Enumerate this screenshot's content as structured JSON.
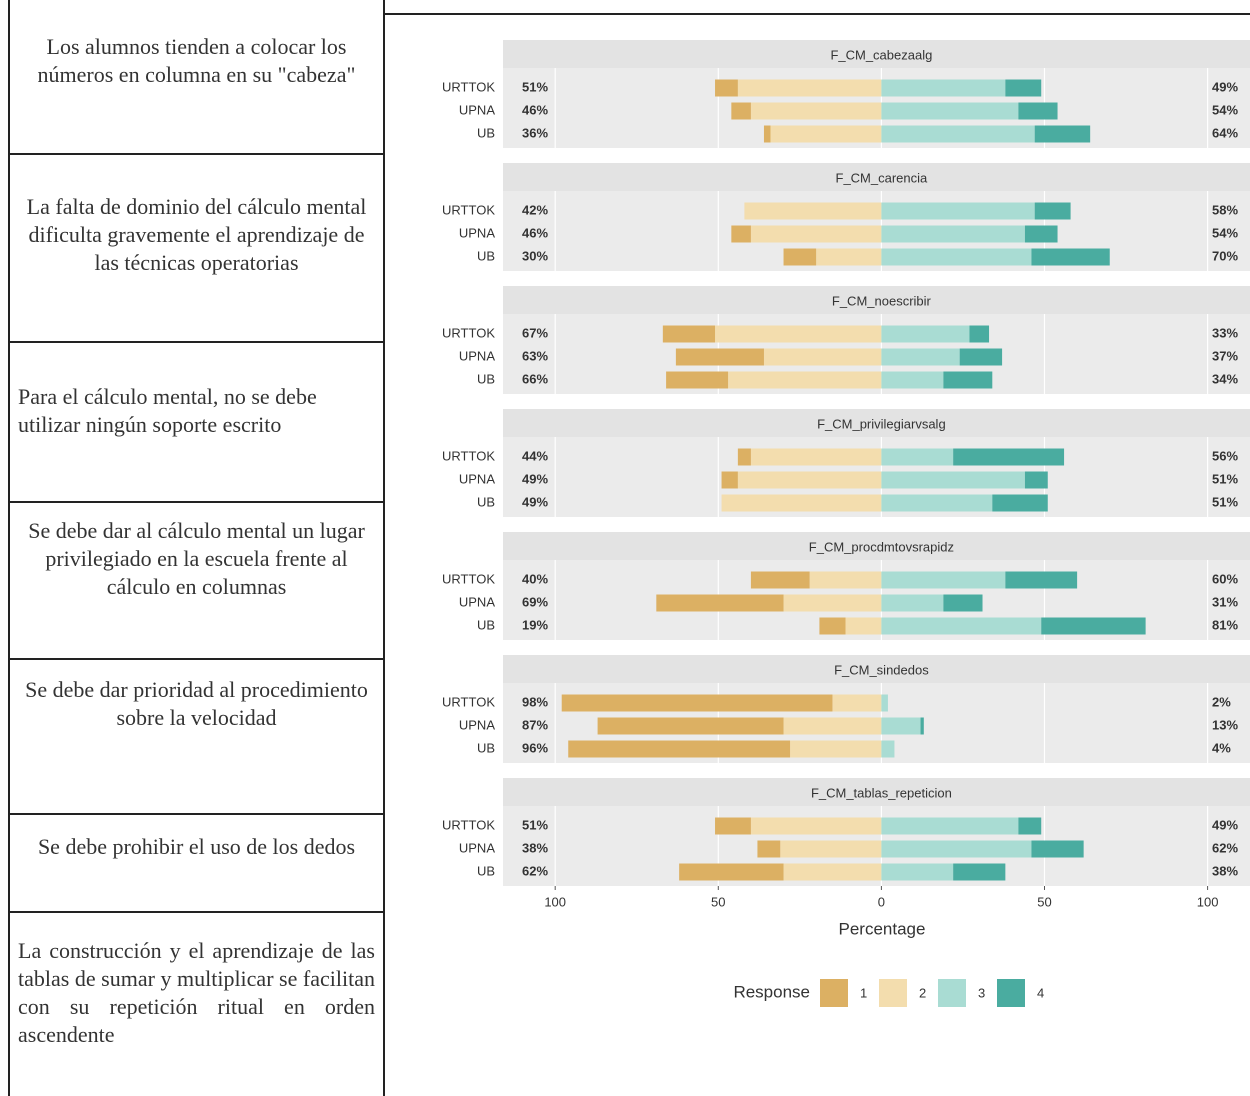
{
  "table": {
    "rows": [
      "Los alumnos tienden a colocar los números en columna  en su \"cabeza\"",
      "La falta de dominio del cálculo mental dificulta gravemente el aprendizaje de las técnicas operatorias",
      "Para el cálculo mental, no se debe utilizar ningún soporte escrito",
      "Se debe dar al cálculo mental un lugar privilegiado en la escuela frente al cálculo en columnas",
      "Se debe dar prioridad al procedimiento sobre la velocidad",
      "Se debe prohibir el uso de los dedos",
      "La construcción y el aprendizaje de las tablas de sumar y multiplicar se facilitan con su repetición ritual en orden ascendente"
    ]
  },
  "chart_data": {
    "type": "diverging_bar",
    "xlabel": "Percentage",
    "legend_title": "Response",
    "categories": [
      "URTTOK",
      "UPNA",
      "UB"
    ],
    "series": [
      {
        "name": "1",
        "color": "#dcb063"
      },
      {
        "name": "2",
        "color": "#f3ddae"
      },
      {
        "name": "3",
        "color": "#a9dcd3"
      },
      {
        "name": "4",
        "color": "#4aaca0"
      }
    ],
    "xlim": [
      -116,
      113
    ],
    "xticks": [
      {
        "value": -100,
        "label": "100"
      },
      {
        "value": -50,
        "label": "50"
      },
      0,
      50,
      100
    ],
    "grid": true,
    "panels": [
      {
        "title": "F_CM_cabezaalg",
        "values": [
          [
            7,
            44,
            38,
            11
          ],
          [
            6,
            40,
            42,
            12
          ],
          [
            2,
            34,
            47,
            17
          ]
        ],
        "left_labels": [
          "51%",
          "46%",
          "36%"
        ],
        "right_labels": [
          "49%",
          "54%",
          "64%"
        ]
      },
      {
        "title": "F_CM_carencia",
        "values": [
          [
            0,
            42,
            47,
            11
          ],
          [
            6,
            40,
            44,
            10
          ],
          [
            10,
            20,
            46,
            24
          ]
        ],
        "left_labels": [
          "42%",
          "46%",
          "30%"
        ],
        "right_labels": [
          "58%",
          "54%",
          "70%"
        ]
      },
      {
        "title": "F_CM_noescribir",
        "values": [
          [
            16,
            51,
            27,
            6
          ],
          [
            27,
            36,
            24,
            13
          ],
          [
            19,
            47,
            19,
            15
          ]
        ],
        "left_labels": [
          "67%",
          "63%",
          "66%"
        ],
        "right_labels": [
          "33%",
          "37%",
          "34%"
        ]
      },
      {
        "title": "F_CM_privilegiarvsalg",
        "values": [
          [
            4,
            40,
            22,
            34
          ],
          [
            5,
            44,
            44,
            7
          ],
          [
            0,
            49,
            34,
            17
          ]
        ],
        "left_labels": [
          "44%",
          "49%",
          "49%"
        ],
        "right_labels": [
          "56%",
          "51%",
          "51%"
        ]
      },
      {
        "title": "F_CM_procdmtovsrapidz",
        "values": [
          [
            18,
            22,
            38,
            22
          ],
          [
            39,
            30,
            19,
            12
          ],
          [
            8,
            11,
            49,
            32
          ]
        ],
        "left_labels": [
          "40%",
          "69%",
          "19%"
        ],
        "right_labels": [
          "60%",
          "31%",
          "81%"
        ]
      },
      {
        "title": "F_CM_sindedos",
        "values": [
          [
            83,
            15,
            2,
            0
          ],
          [
            57,
            30,
            12,
            1
          ],
          [
            68,
            28,
            4,
            0
          ]
        ],
        "left_labels": [
          "98%",
          "87%",
          "96%"
        ],
        "right_labels": [
          "2%",
          "13%",
          "4%"
        ]
      },
      {
        "title": "F_CM_tablas_repeticion",
        "values": [
          [
            11,
            40,
            42,
            7
          ],
          [
            7,
            31,
            46,
            16
          ],
          [
            32,
            30,
            22,
            16
          ]
        ],
        "left_labels": [
          "51%",
          "38%",
          "62%"
        ],
        "right_labels": [
          "49%",
          "62%",
          "38%"
        ]
      }
    ]
  }
}
